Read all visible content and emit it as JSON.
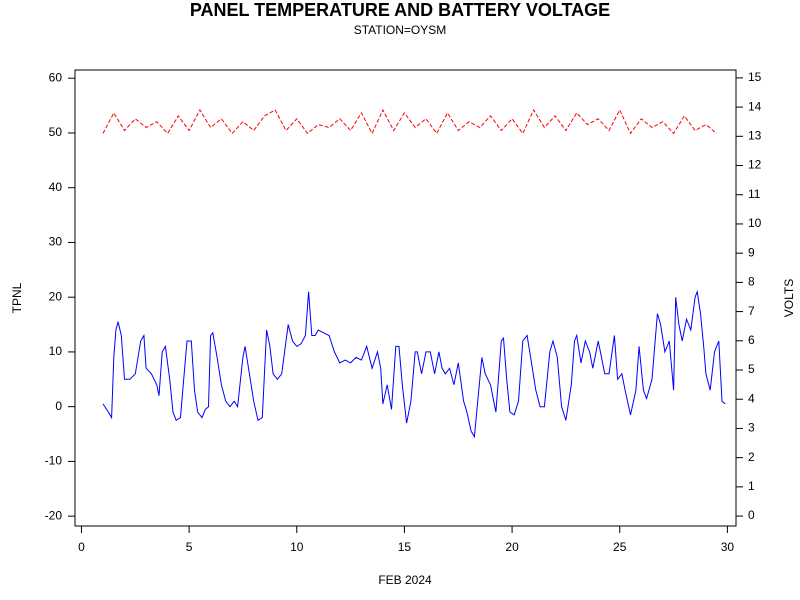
{
  "chart_data": {
    "type": "line",
    "title": "PANEL TEMPERATURE AND BATTERY VOLTAGE",
    "subtitle": "STATION=OYSM",
    "xlabel": "FEB 2024",
    "ylabel": "TPNL",
    "y2label": "VOLTS",
    "xlim": [
      -0.3,
      30.4
    ],
    "xticks": [
      0,
      5,
      10,
      15,
      20,
      25,
      30
    ],
    "ylim": [
      -21.8,
      61.5
    ],
    "yticks": [
      -20,
      -10,
      0,
      10,
      20,
      30,
      40,
      50,
      60
    ],
    "y2lim": [
      -0.34,
      15.27
    ],
    "y2ticks": [
      0,
      1,
      2,
      3,
      4,
      5,
      6,
      7,
      8,
      9,
      10,
      11,
      12,
      13,
      14,
      15
    ],
    "series": [
      {
        "name": "TPNL",
        "color": "#0000ff",
        "axis": "y",
        "dashed": false,
        "x": [
          1.0,
          1.25,
          1.4,
          1.5,
          1.6,
          1.7,
          1.85,
          2.0,
          2.25,
          2.5,
          2.75,
          2.9,
          3.0,
          3.25,
          3.5,
          3.6,
          3.75,
          3.9,
          4.1,
          4.25,
          4.4,
          4.6,
          4.75,
          4.9,
          5.1,
          5.25,
          5.4,
          5.6,
          5.75,
          5.9,
          6.0,
          6.1,
          6.3,
          6.5,
          6.7,
          6.9,
          7.1,
          7.25,
          7.5,
          7.6,
          7.8,
          8.0,
          8.2,
          8.4,
          8.6,
          8.75,
          8.9,
          9.1,
          9.3,
          9.6,
          9.8,
          10.0,
          10.2,
          10.4,
          10.55,
          10.7,
          10.85,
          11.0,
          11.25,
          11.5,
          11.75,
          12.0,
          12.25,
          12.5,
          12.75,
          13.0,
          13.25,
          13.5,
          13.75,
          13.9,
          14.0,
          14.2,
          14.4,
          14.6,
          14.75,
          14.9,
          15.1,
          15.3,
          15.5,
          15.6,
          15.8,
          16.0,
          16.2,
          16.4,
          16.6,
          16.75,
          16.9,
          17.1,
          17.3,
          17.5,
          17.75,
          17.9,
          18.1,
          18.25,
          18.5,
          18.6,
          18.75,
          19.0,
          19.25,
          19.5,
          19.6,
          19.75,
          19.9,
          20.1,
          20.3,
          20.5,
          20.7,
          20.9,
          21.1,
          21.3,
          21.5,
          21.75,
          21.9,
          22.1,
          22.3,
          22.5,
          22.75,
          22.9,
          23.0,
          23.2,
          23.4,
          23.6,
          23.75,
          24.0,
          24.1,
          24.3,
          24.5,
          24.75,
          24.9,
          25.1,
          25.25,
          25.5,
          25.75,
          25.9,
          26.1,
          26.25,
          26.5,
          26.75,
          26.9,
          27.1,
          27.3,
          27.5,
          27.6,
          27.75,
          27.9,
          28.1,
          28.3,
          28.5,
          28.6,
          28.75,
          28.9,
          29.0,
          29.2,
          29.4,
          29.6,
          29.75,
          29.9
        ],
        "values": [
          0.5,
          -1,
          -2,
          9,
          14,
          15.5,
          13,
          5,
          5,
          6,
          12,
          13,
          7,
          6,
          4,
          2,
          10,
          11,
          5,
          -1,
          -2.5,
          -2,
          5,
          12,
          12,
          3,
          -1,
          -2,
          -0.5,
          0,
          13,
          13.5,
          9,
          4,
          1,
          0,
          1,
          0,
          9,
          11,
          6,
          1,
          -2.5,
          -2,
          14,
          11,
          6,
          5,
          6,
          15,
          12,
          11,
          11.5,
          13,
          21,
          13,
          13,
          14,
          13.5,
          13,
          10,
          8,
          8.5,
          8,
          9,
          8.5,
          11,
          7,
          10,
          7,
          0.5,
          4,
          -0.5,
          11,
          11,
          4,
          -3,
          1,
          10,
          10,
          6,
          10,
          10,
          6,
          10,
          7,
          6,
          7,
          4,
          8,
          1,
          -1,
          -4.5,
          -5.5,
          5,
          9,
          6,
          4,
          -1,
          12,
          12.5,
          5,
          -1,
          -1.5,
          1,
          12,
          13,
          8,
          3,
          0,
          0,
          10,
          12,
          9,
          0,
          -2.5,
          4,
          12,
          13,
          8,
          12,
          10,
          7,
          12,
          10,
          6,
          6,
          13,
          5,
          6,
          3,
          -1.5,
          3,
          11,
          3,
          1.5,
          5,
          17,
          15,
          10,
          12,
          3,
          20,
          15,
          12,
          16,
          14,
          20,
          21,
          17,
          11,
          6,
          3,
          10,
          12,
          1,
          0.5
        ]
      },
      {
        "name": "VOLTS",
        "color": "#ff0000",
        "axis": "y2",
        "dashed": true,
        "x": [
          1,
          1.5,
          2,
          2.5,
          3,
          3.5,
          4,
          4.5,
          5,
          5.5,
          6,
          6.5,
          7,
          7.5,
          8,
          8.5,
          9,
          9.5,
          10,
          10.5,
          11,
          11.5,
          12,
          12.5,
          13,
          13.5,
          14,
          14.5,
          15,
          15.5,
          16,
          16.5,
          17,
          17.5,
          18,
          18.5,
          19,
          19.5,
          20,
          20.5,
          21,
          21.5,
          22,
          22.5,
          23,
          23.5,
          24,
          24.5,
          25,
          25.5,
          26,
          26.5,
          27,
          27.5,
          28,
          28.5,
          29,
          29.5
        ],
        "values": [
          13.1,
          13.8,
          13.2,
          13.6,
          13.3,
          13.5,
          13.1,
          13.7,
          13.2,
          13.9,
          13.3,
          13.6,
          13.1,
          13.5,
          13.2,
          13.7,
          13.9,
          13.2,
          13.6,
          13.1,
          13.4,
          13.3,
          13.6,
          13.2,
          13.8,
          13.1,
          13.9,
          13.2,
          13.8,
          13.3,
          13.6,
          13.1,
          13.8,
          13.2,
          13.5,
          13.3,
          13.7,
          13.2,
          13.6,
          13.1,
          13.9,
          13.3,
          13.7,
          13.2,
          13.8,
          13.4,
          13.6,
          13.2,
          13.9,
          13.1,
          13.6,
          13.3,
          13.5,
          13.1,
          13.7,
          13.2,
          13.4,
          13.1
        ]
      }
    ]
  }
}
